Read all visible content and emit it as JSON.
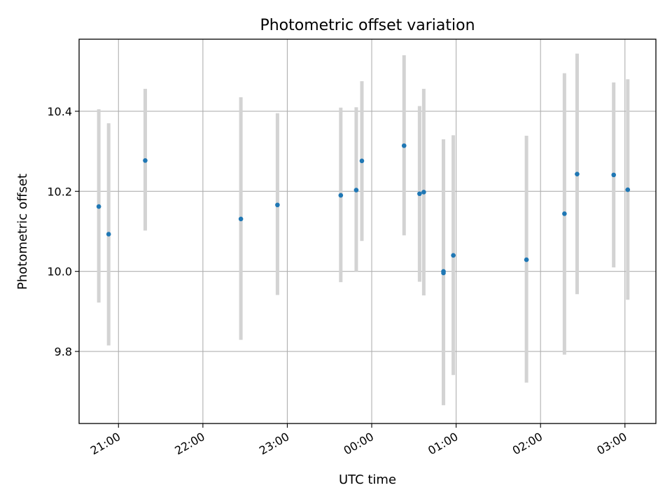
{
  "chart_data": {
    "type": "scatter",
    "title": "Photometric offset variation",
    "xlabel": "UTC time",
    "ylabel": "Photometric offset",
    "x_ticks": [
      "21:00",
      "22:00",
      "23:00",
      "00:00",
      "01:00",
      "02:00",
      "03:00"
    ],
    "y_ticks": [
      "9.8",
      "10.0",
      "10.2",
      "10.4"
    ],
    "y_tick_values": [
      9.8,
      10.0,
      10.2,
      10.4
    ],
    "xlim": [
      "20:32",
      "03:22"
    ],
    "ylim": [
      9.62,
      10.58
    ],
    "grid": true,
    "error_bar_color": "#d3d3d3",
    "point_color": "#1f77b4",
    "points": [
      {
        "x": "20:46",
        "y": 10.162,
        "lo": 9.922,
        "hi": 10.405
      },
      {
        "x": "20:53",
        "y": 10.093,
        "lo": 9.815,
        "hi": 10.37
      },
      {
        "x": "21:19",
        "y": 10.277,
        "lo": 10.102,
        "hi": 10.456
      },
      {
        "x": "22:27",
        "y": 10.131,
        "lo": 9.829,
        "hi": 10.435
      },
      {
        "x": "22:53",
        "y": 10.166,
        "lo": 9.941,
        "hi": 10.395
      },
      {
        "x": "23:38",
        "y": 10.19,
        "lo": 9.973,
        "hi": 10.409
      },
      {
        "x": "23:49",
        "y": 10.203,
        "lo": 10.0,
        "hi": 10.41
      },
      {
        "x": "23:53",
        "y": 10.276,
        "lo": 10.076,
        "hi": 10.475
      },
      {
        "x": "00:23",
        "y": 10.314,
        "lo": 10.09,
        "hi": 10.54
      },
      {
        "x": "00:34",
        "y": 10.194,
        "lo": 9.974,
        "hi": 10.413
      },
      {
        "x": "00:37",
        "y": 10.198,
        "lo": 9.94,
        "hi": 10.456
      },
      {
        "x": "00:51",
        "y": 10.0,
        "lo": 9.666,
        "hi": 10.33
      },
      {
        "x": "00:51",
        "y": 9.996,
        "lo": 9.666,
        "hi": 10.33
      },
      {
        "x": "00:58",
        "y": 10.04,
        "lo": 9.741,
        "hi": 10.34
      },
      {
        "x": "01:50",
        "y": 10.029,
        "lo": 9.722,
        "hi": 10.339
      },
      {
        "x": "02:17",
        "y": 10.144,
        "lo": 9.792,
        "hi": 10.495
      },
      {
        "x": "02:26",
        "y": 10.243,
        "lo": 9.943,
        "hi": 10.544
      },
      {
        "x": "02:52",
        "y": 10.241,
        "lo": 10.01,
        "hi": 10.472
      },
      {
        "x": "03:02",
        "y": 10.204,
        "lo": 9.929,
        "hi": 10.48
      }
    ]
  }
}
